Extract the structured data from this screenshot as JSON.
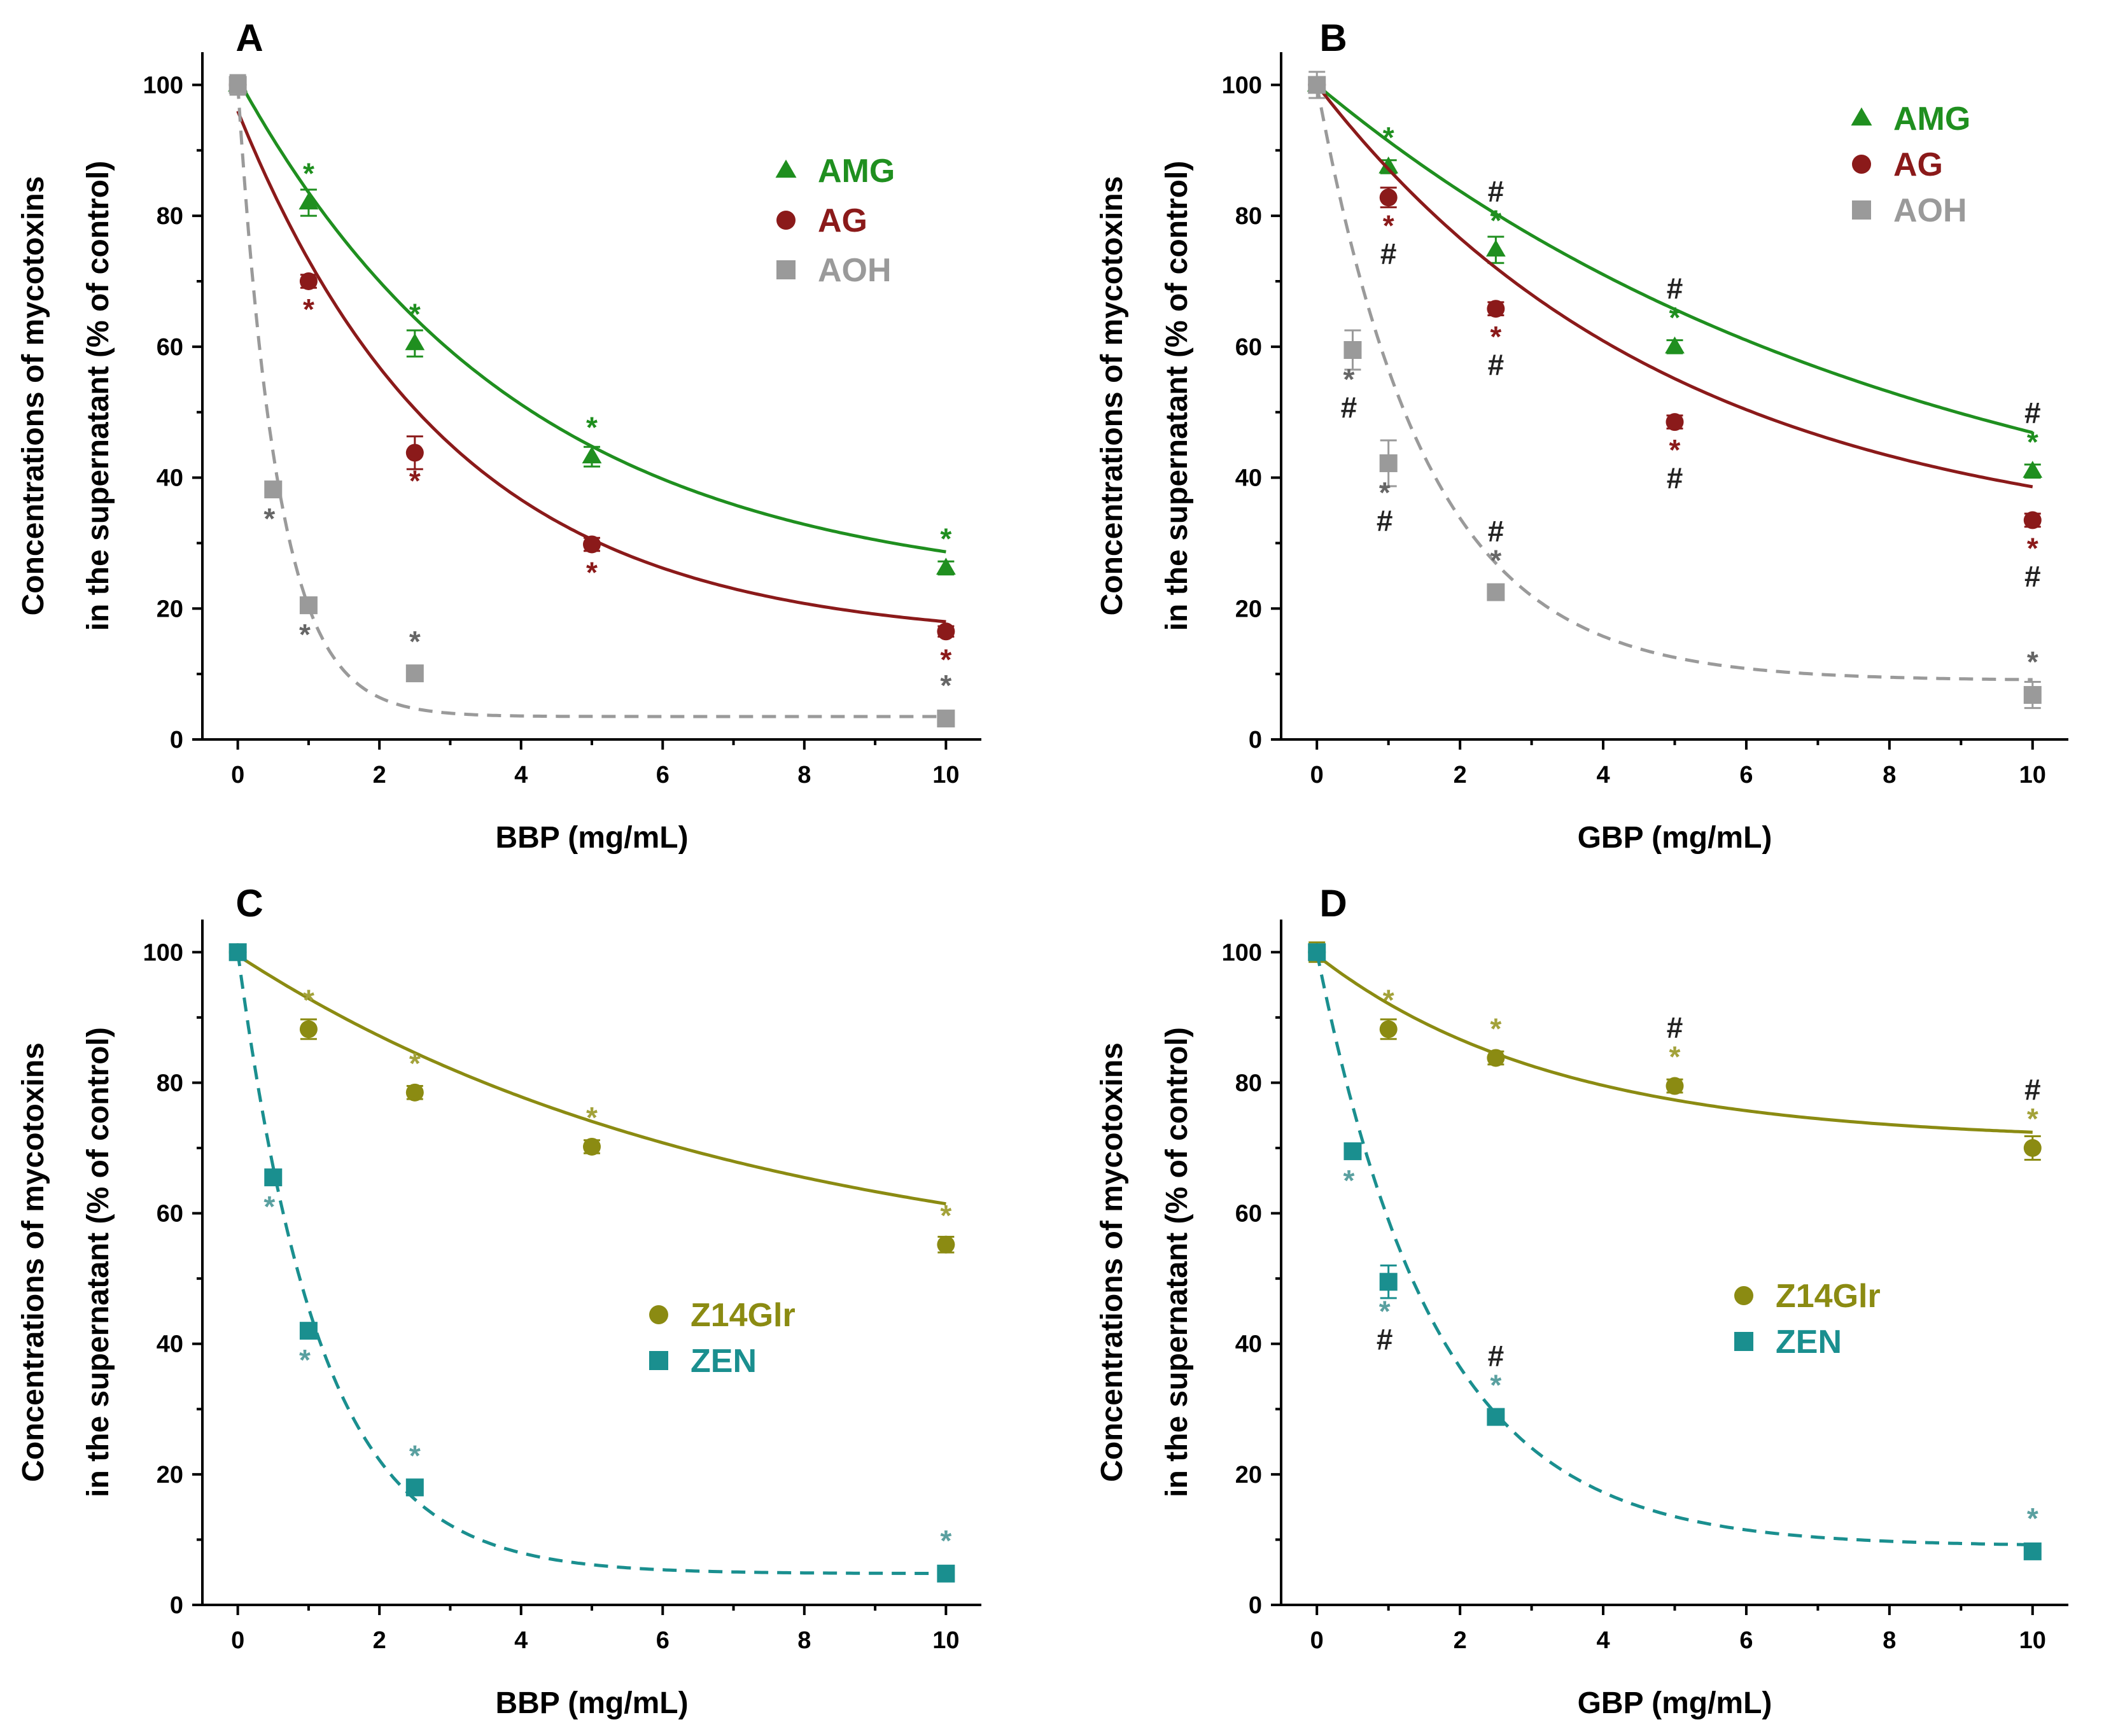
{
  "chart_data": [
    {
      "type": "scatter",
      "panel": "A",
      "xlabel": "BBP (mg/mL)",
      "ylabel": [
        "Concentrations of mycotoxins",
        "in the supernatant (% of control)"
      ],
      "xlim": [
        -0.5,
        10.5
      ],
      "ylim": [
        0,
        105
      ],
      "xticks": [
        0,
        2,
        4,
        6,
        8,
        10
      ],
      "yticks": [
        0,
        20,
        40,
        60,
        80,
        100
      ],
      "legend": "top-right",
      "series": [
        {
          "name": "AMG",
          "color": "#1f8f1f",
          "marker": "triangle",
          "dashed": false,
          "x": [
            0,
            1,
            2.5,
            5,
            10
          ],
          "y": [
            100,
            82,
            60.5,
            43.2,
            26.2
          ],
          "err": [
            1.0,
            2.0,
            2.0,
            1.5,
            1.0
          ],
          "sig": [
            "",
            "*",
            "*",
            "*",
            "*"
          ],
          "fit": {
            "y0": 22.2,
            "A": 78.8,
            "k": 0.25
          }
        },
        {
          "name": "AG",
          "color": "#8b1a1a",
          "marker": "circle",
          "dashed": false,
          "x": [
            0,
            1,
            2.5,
            5,
            10
          ],
          "y": [
            100,
            70,
            43.8,
            29.8,
            16.5
          ],
          "err": [
            1.0,
            1.0,
            2.5,
            1.0,
            0.8
          ],
          "sig": [
            "",
            "*",
            "*",
            "*",
            "*"
          ],
          "fit": {
            "y0": 15.0,
            "A": 81.0,
            "k": 0.33
          }
        },
        {
          "name": "AOH",
          "color": "#9a9a9a",
          "marker": "square",
          "dashed": true,
          "x": [
            0,
            0.5,
            1,
            2.5,
            10
          ],
          "y": [
            100,
            38.2,
            20.5,
            10.1,
            3.2
          ],
          "err": [
            1.5,
            1.0,
            1.0,
            1.0,
            0.5
          ],
          "sig": [
            "",
            "*",
            "*",
            "*",
            "*"
          ],
          "fit": {
            "y0": 3.5,
            "A": 96.5,
            "k": 1.75
          }
        }
      ]
    },
    {
      "type": "scatter",
      "panel": "B",
      "xlabel": "GBP (mg/mL)",
      "ylabel": [
        "Concentrations of mycotoxins",
        "in the supernatant (% of control)"
      ],
      "xlim": [
        -0.5,
        10.5
      ],
      "ylim": [
        0,
        105
      ],
      "xticks": [
        0,
        2,
        4,
        6,
        8,
        10
      ],
      "yticks": [
        0,
        20,
        40,
        60,
        80,
        100
      ],
      "legend": "top-right",
      "series": [
        {
          "name": "AMG",
          "color": "#1f8f1f",
          "marker": "triangle",
          "dashed": false,
          "x": [
            0,
            1,
            2.5,
            5,
            10
          ],
          "y": [
            100,
            87.5,
            74.8,
            60,
            41
          ],
          "err": [
            1.0,
            1.0,
            2.0,
            1.0,
            1.0
          ],
          "sig": [
            "",
            "*",
            "*#",
            "*#",
            "*#"
          ],
          "fit": {
            "y0": 24.0,
            "A": 76.0,
            "k": 0.12
          }
        },
        {
          "name": "AG",
          "color": "#8b1a1a",
          "marker": "circle",
          "dashed": false,
          "x": [
            0,
            1,
            2.5,
            5,
            10
          ],
          "y": [
            100,
            82.8,
            65.8,
            48.5,
            33.5
          ],
          "err": [
            1.0,
            1.5,
            1.0,
            1.0,
            1.0
          ],
          "sig": [
            "",
            "*#",
            "*#",
            "*#",
            "*#"
          ],
          "fit": {
            "y0": 29.0,
            "A": 71.0,
            "k": 0.2
          }
        },
        {
          "name": "AOH",
          "color": "#9a9a9a",
          "marker": "square",
          "dashed": true,
          "x": [
            0,
            0.5,
            1,
            2.5,
            10
          ],
          "y": [
            100,
            59.5,
            42.2,
            22.5,
            6.8
          ],
          "err": [
            2.0,
            3.0,
            3.5,
            1.0,
            2.0
          ],
          "sig": [
            "",
            "*#",
            "*#",
            "*#",
            "*"
          ],
          "fit": {
            "y0": 9.0,
            "A": 91.0,
            "k": 0.65
          }
        }
      ]
    },
    {
      "type": "scatter",
      "panel": "C",
      "xlabel": "BBP (mg/mL)",
      "ylabel": [
        "Concentrations of mycotoxins",
        "in the supernatant (% of control)"
      ],
      "xlim": [
        -0.5,
        10.5
      ],
      "ylim": [
        0,
        105
      ],
      "xticks": [
        0,
        2,
        4,
        6,
        8,
        10
      ],
      "yticks": [
        0,
        20,
        40,
        60,
        80,
        100
      ],
      "legend": "center-right",
      "series": [
        {
          "name": "Z14Glr",
          "color": "#8b8b12",
          "marker": "circle",
          "dashed": false,
          "x": [
            0,
            1,
            2.5,
            5,
            10
          ],
          "y": [
            100,
            88.2,
            78.5,
            70.2,
            55.2
          ],
          "err": [
            1.0,
            1.5,
            1.0,
            1.0,
            1.2
          ],
          "sig": [
            "",
            "*",
            "*",
            "*",
            "*"
          ],
          "fit": {
            "y0": 49.0,
            "A": 50.5,
            "k": 0.14
          }
        },
        {
          "name": "ZEN",
          "color": "#1a8f8f",
          "marker": "square",
          "dashed": true,
          "x": [
            0,
            0.5,
            1,
            2.5,
            10
          ],
          "y": [
            100,
            65.5,
            42,
            18,
            4.8
          ],
          "err": [
            1.0,
            1.0,
            1.0,
            1.0,
            0.8
          ],
          "sig": [
            "",
            "*",
            "*",
            "*",
            "*"
          ],
          "fit": {
            "y0": 4.8,
            "A": 95.2,
            "k": 0.85
          }
        }
      ]
    },
    {
      "type": "scatter",
      "panel": "D",
      "xlabel": "GBP (mg/mL)",
      "ylabel": [
        "Concentrations of mycotoxins",
        "in the supernatant (% of control)"
      ],
      "xlim": [
        -0.5,
        10.5
      ],
      "ylim": [
        0,
        105
      ],
      "xticks": [
        0,
        2,
        4,
        6,
        8,
        10
      ],
      "yticks": [
        0,
        20,
        40,
        60,
        80,
        100
      ],
      "legend": "center-right",
      "series": [
        {
          "name": "Z14Glr",
          "color": "#8b8b12",
          "marker": "circle",
          "dashed": false,
          "x": [
            0,
            1,
            2.5,
            5,
            10
          ],
          "y": [
            100,
            88.2,
            83.8,
            79.5,
            70
          ],
          "err": [
            1.5,
            1.5,
            1.0,
            1.0,
            1.8
          ],
          "sig": [
            "",
            "*",
            "*",
            "*#",
            "*#"
          ],
          "fit": {
            "y0": 71.0,
            "A": 28.5,
            "k": 0.3
          }
        },
        {
          "name": "ZEN",
          "color": "#1a8f8f",
          "marker": "square",
          "dashed": true,
          "x": [
            0,
            0.5,
            1,
            2.5,
            10
          ],
          "y": [
            100,
            69.5,
            49.5,
            28.8,
            8.2
          ],
          "err": [
            1.0,
            1.0,
            2.5,
            1.0,
            0.8
          ],
          "sig": [
            "",
            "*",
            "*#",
            "*#",
            "*"
          ],
          "fit": {
            "y0": 9.0,
            "A": 91.0,
            "k": 0.6
          }
        }
      ]
    }
  ]
}
